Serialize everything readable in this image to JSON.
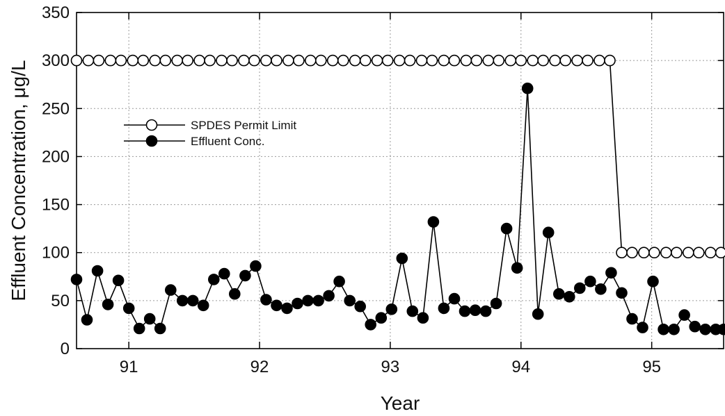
{
  "chart_data": {
    "type": "line",
    "title": "",
    "xlabel": "Year",
    "ylabel": "Effluent Concentration, μg/L",
    "xlim": [
      90.6,
      95.55
    ],
    "ylim": [
      0,
      350
    ],
    "x_ticks": [
      91,
      92,
      93,
      94,
      95
    ],
    "x_tick_labels": [
      "91",
      "92",
      "93",
      "94",
      "95"
    ],
    "y_ticks": [
      0,
      50,
      100,
      150,
      200,
      250,
      300,
      350
    ],
    "y_tick_labels": [
      "0",
      "50",
      "100",
      "150",
      "200",
      "250",
      "300",
      "350"
    ],
    "grid": true,
    "legend_position": "upper-left",
    "series": [
      {
        "name": "SPDES Permit Limit",
        "marker": "open-circle",
        "color": "#000000",
        "x": [
          90.6,
          90.69,
          90.77,
          90.86,
          90.94,
          91.03,
          91.11,
          91.2,
          91.28,
          91.37,
          91.45,
          91.54,
          91.62,
          91.71,
          91.79,
          91.88,
          91.96,
          92.05,
          92.13,
          92.22,
          92.3,
          92.39,
          92.47,
          92.56,
          92.64,
          92.73,
          92.81,
          92.9,
          92.98,
          93.07,
          93.15,
          93.24,
          93.32,
          93.41,
          93.49,
          93.58,
          93.66,
          93.75,
          93.83,
          93.92,
          94.0,
          94.09,
          94.17,
          94.26,
          94.34,
          94.43,
          94.51,
          94.6,
          94.68,
          94.77,
          94.85,
          94.94,
          95.02,
          95.11,
          95.19,
          95.28,
          95.36,
          95.45,
          95.53
        ],
        "y": [
          300,
          300,
          300,
          300,
          300,
          300,
          300,
          300,
          300,
          300,
          300,
          300,
          300,
          300,
          300,
          300,
          300,
          300,
          300,
          300,
          300,
          300,
          300,
          300,
          300,
          300,
          300,
          300,
          300,
          300,
          300,
          300,
          300,
          300,
          300,
          300,
          300,
          300,
          300,
          300,
          300,
          300,
          300,
          300,
          300,
          300,
          300,
          300,
          300,
          100,
          100,
          100,
          100,
          100,
          100,
          100,
          100,
          100,
          100
        ]
      },
      {
        "name": "Effluent Conc.",
        "marker": "filled-circle",
        "color": "#000000",
        "x": [
          90.6,
          90.68,
          90.76,
          90.84,
          90.92,
          91.0,
          91.08,
          91.16,
          91.24,
          91.32,
          91.41,
          91.49,
          91.57,
          91.65,
          91.73,
          91.81,
          91.89,
          91.97,
          92.05,
          92.13,
          92.21,
          92.29,
          92.37,
          92.45,
          92.53,
          92.61,
          92.69,
          92.77,
          92.85,
          92.93,
          93.01,
          93.09,
          93.17,
          93.25,
          93.33,
          93.41,
          93.49,
          93.57,
          93.65,
          93.73,
          93.81,
          93.89,
          93.97,
          94.05,
          94.13,
          94.21,
          94.29,
          94.37,
          94.45,
          94.53,
          94.61,
          94.69,
          94.77,
          94.85,
          94.93,
          95.01,
          95.09,
          95.17,
          95.25,
          95.33,
          95.41,
          95.49,
          95.55
        ],
        "y": [
          72,
          30,
          81,
          46,
          71,
          42,
          21,
          31,
          21,
          61,
          50,
          50,
          45,
          72,
          78,
          57,
          76,
          86,
          51,
          45,
          42,
          47,
          50,
          50,
          55,
          70,
          50,
          44,
          25,
          32,
          41,
          94,
          39,
          32,
          132,
          42,
          52,
          39,
          40,
          39,
          47,
          125,
          84,
          271,
          36,
          121,
          57,
          54,
          63,
          70,
          62,
          79,
          58,
          31,
          22,
          70,
          20,
          20,
          35,
          23,
          20,
          20,
          20
        ]
      }
    ]
  }
}
